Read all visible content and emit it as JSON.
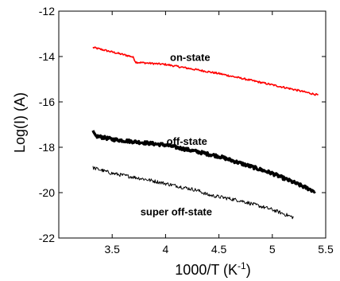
{
  "chart_data": {
    "type": "line",
    "xlabel_main": "1000/T (K",
    "xlabel_sup": "-1",
    "xlabel_close": ")",
    "ylabel": "Log(I) (A)",
    "xlim": [
      3.0,
      5.5
    ],
    "ylim": [
      -22,
      -12
    ],
    "xticks": [
      3.5,
      4,
      4.5,
      5,
      5.5
    ],
    "xtick_labels": [
      "3.5",
      "4",
      "4.5",
      "5",
      "5.5"
    ],
    "yticks": [
      -22,
      -20,
      -18,
      -16,
      -14,
      -12
    ],
    "ytick_labels": [
      "-22",
      "-20",
      "-18",
      "-16",
      "-14",
      "-12"
    ],
    "grid": false,
    "annotations": [
      {
        "text": "on-state",
        "x": 4.23,
        "y": -14.2
      },
      {
        "text": "off-state",
        "x": 4.2,
        "y": -17.9
      },
      {
        "text": "super off-state",
        "x": 4.1,
        "y": -21.0
      }
    ],
    "series": [
      {
        "color": "#ff0000",
        "noise": 0.04,
        "width": 1.6,
        "x": [
          3.32,
          3.5,
          3.68,
          3.7,
          3.72,
          4.0,
          4.5,
          5.0,
          5.2,
          5.43
        ],
        "y": [
          -13.6,
          -13.8,
          -14.0,
          -14.05,
          -14.25,
          -14.35,
          -14.75,
          -15.25,
          -15.45,
          -15.7
        ]
      },
      {
        "color": "#000000",
        "noise": 0.07,
        "width": 3.4,
        "x": [
          3.32,
          3.34,
          3.4,
          3.5,
          3.7,
          4.0,
          4.5,
          5.0,
          5.4
        ],
        "y": [
          -17.3,
          -17.5,
          -17.55,
          -17.65,
          -17.75,
          -17.9,
          -18.4,
          -19.15,
          -19.95
        ]
      },
      {
        "color": "#000000",
        "noise": 0.08,
        "width": 1.0,
        "x": [
          3.32,
          3.5,
          3.8,
          4.0,
          4.3,
          4.4,
          4.7,
          5.0,
          5.2
        ],
        "y": [
          -18.9,
          -19.15,
          -19.4,
          -19.6,
          -19.9,
          -20.1,
          -20.35,
          -20.75,
          -21.1
        ]
      }
    ]
  }
}
